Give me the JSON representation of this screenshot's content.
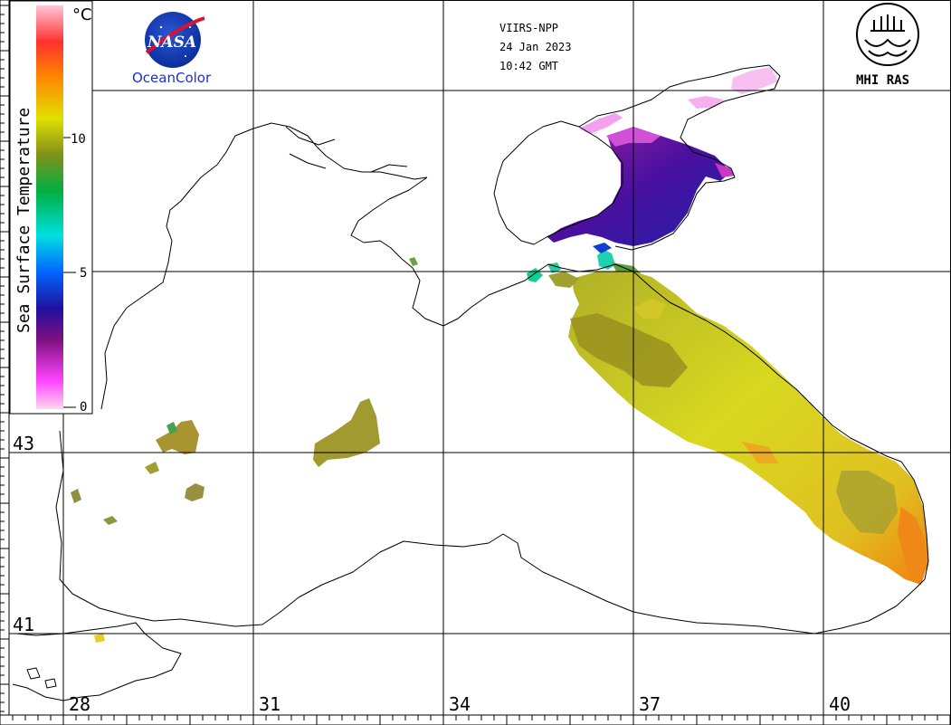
{
  "header": {
    "satellite": "VIIRS-NPP",
    "date": "24 Jan 2023",
    "time": "10:42 GMT"
  },
  "logos": {
    "nasa_text": "NASA",
    "oceancolor_text": "OceanColor",
    "mhi_text": "MHI RAS"
  },
  "colorbar": {
    "label": "Sea Surface Temperature",
    "unit": "°C",
    "ticks": [
      "10",
      "5",
      "0"
    ],
    "min": 0,
    "max": 15,
    "stops": [
      "#ffd8ee",
      "#ff44ff",
      "#801080",
      "#2010a0",
      "#0066ff",
      "#00e0e0",
      "#00b040",
      "#80901a",
      "#e0e000",
      "#ff8000",
      "#ff3030",
      "#ffc8d8"
    ]
  },
  "grid": {
    "lon_labels": [
      "28",
      "31",
      "34",
      "37",
      "40"
    ],
    "lat_labels": [
      "43",
      "41"
    ]
  }
}
